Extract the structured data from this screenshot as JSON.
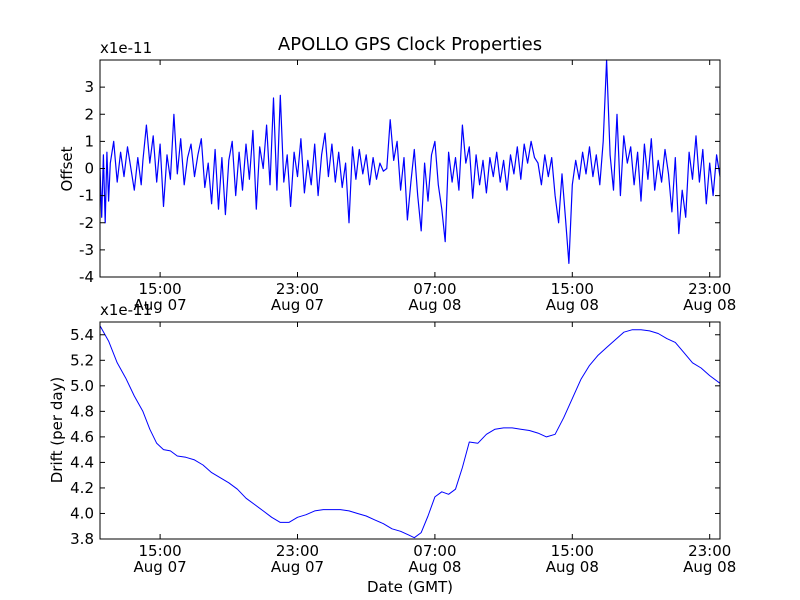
{
  "figure": {
    "title": "APOLLO GPS Clock Properties"
  },
  "chart_data": [
    {
      "type": "line",
      "title": "APOLLO GPS Clock Properties",
      "ylabel": "Offset",
      "xlabel": "",
      "offset_label": "x1e-11",
      "x_unit": "hours (GMT) relative to Aug 07 00:00",
      "xlim": [
        11.5,
        47.6
      ],
      "ylim": [
        -4,
        4
      ],
      "yticks": [
        -4,
        -3,
        -2,
        -1,
        0,
        1,
        2,
        3
      ],
      "ytick_labels": [
        "-4",
        "-3",
        "-2",
        "-1",
        "0",
        "1",
        "2",
        "3"
      ],
      "xticks": [
        {
          "x": 15,
          "time": "15:00",
          "date": "Aug 07"
        },
        {
          "x": 23,
          "time": "23:00",
          "date": "Aug 07"
        },
        {
          "x": 31,
          "time": "07:00",
          "date": "Aug 08"
        },
        {
          "x": 39,
          "time": "15:00",
          "date": "Aug 08"
        },
        {
          "x": 47,
          "time": "23:00",
          "date": "Aug 08"
        }
      ],
      "line_color": "#0000ff",
      "grid": false,
      "series": [
        {
          "name": "",
          "x": [
            11.5,
            11.6,
            11.7,
            11.8,
            11.9,
            12.0,
            12.1,
            12.3,
            12.5,
            12.7,
            12.9,
            13.1,
            13.3,
            13.5,
            13.7,
            13.9,
            14.0,
            14.2,
            14.4,
            14.6,
            14.8,
            15.0,
            15.2,
            15.4,
            15.6,
            15.8,
            16.0,
            16.2,
            16.4,
            16.6,
            16.8,
            17.0,
            17.2,
            17.4,
            17.6,
            17.8,
            18.0,
            18.2,
            18.4,
            18.6,
            18.8,
            19.0,
            19.2,
            19.4,
            19.6,
            19.8,
            20.0,
            20.2,
            20.4,
            20.6,
            20.8,
            21.0,
            21.2,
            21.4,
            21.6,
            21.8,
            22.0,
            22.2,
            22.4,
            22.6,
            22.8,
            23.0,
            23.2,
            23.4,
            23.6,
            23.8,
            24.0,
            24.2,
            24.4,
            24.6,
            24.8,
            25.0,
            25.2,
            25.4,
            25.6,
            25.8,
            26.0,
            26.2,
            26.4,
            26.6,
            26.8,
            27.0,
            27.2,
            27.4,
            27.6,
            27.8,
            28.0,
            28.2,
            28.4,
            28.6,
            28.8,
            29.0,
            29.2,
            29.4,
            29.6,
            29.8,
            30.0,
            30.2,
            30.4,
            30.6,
            30.8,
            31.0,
            31.2,
            31.4,
            31.6,
            31.8,
            32.0,
            32.2,
            32.4,
            32.6,
            32.8,
            33.0,
            33.2,
            33.4,
            33.6,
            33.8,
            34.0,
            34.2,
            34.4,
            34.6,
            34.8,
            35.0,
            35.2,
            35.4,
            35.6,
            35.8,
            36.0,
            36.2,
            36.4,
            36.6,
            36.8,
            37.0,
            37.2,
            37.4,
            37.6,
            37.8,
            38.0,
            38.2,
            38.4,
            38.6,
            38.8,
            39.0,
            39.2,
            39.4,
            39.6,
            39.8,
            40.0,
            40.2,
            40.4,
            40.6,
            40.8,
            41.0,
            41.2,
            41.4,
            41.6,
            41.8,
            42.0,
            42.2,
            42.4,
            42.6,
            42.8,
            43.0,
            43.2,
            43.4,
            43.6,
            43.8,
            44.0,
            44.2,
            44.4,
            44.6,
            44.8,
            45.0,
            45.2,
            45.4,
            45.6,
            45.8,
            46.0,
            46.2,
            46.4,
            46.6,
            46.8,
            47.0,
            47.2,
            47.4,
            47.6
          ],
          "y": [
            0.0,
            -1.8,
            0.5,
            -2.0,
            0.6,
            -1.2,
            0.2,
            1.0,
            -0.5,
            0.6,
            -0.3,
            0.8,
            0.0,
            -0.8,
            0.4,
            -0.6,
            0.3,
            1.6,
            0.2,
            1.2,
            -0.5,
            0.9,
            -1.4,
            0.5,
            -0.4,
            2.0,
            -0.2,
            1.1,
            -0.6,
            0.4,
            0.9,
            -0.3,
            0.5,
            1.1,
            -0.7,
            0.2,
            -1.3,
            0.7,
            -1.5,
            0.4,
            -1.7,
            0.3,
            1.0,
            -1.0,
            0.6,
            -0.8,
            0.9,
            -0.4,
            1.4,
            -1.5,
            0.8,
            0.0,
            1.6,
            -0.6,
            2.6,
            -0.8,
            2.7,
            -0.5,
            0.5,
            -1.4,
            0.6,
            -0.3,
            1.1,
            -0.9,
            0.3,
            -0.6,
            0.9,
            -1.0,
            0.5,
            1.3,
            -0.3,
            0.9,
            -0.5,
            0.6,
            -0.7,
            0.2,
            -2.0,
            0.8,
            -0.4,
            0.7,
            -0.2,
            0.5,
            -0.6,
            0.4,
            -0.4,
            0.2,
            -0.1,
            0.0,
            1.8,
            0.3,
            1.0,
            -0.8,
            0.4,
            -1.9,
            -0.5,
            0.7,
            -1.0,
            -2.3,
            0.2,
            -1.2,
            0.5,
            1.0,
            -0.6,
            -1.5,
            -2.7,
            0.6,
            -0.5,
            0.4,
            -0.8,
            1.6,
            0.2,
            0.8,
            -1.1,
            0.5,
            -0.6,
            0.3,
            -0.9,
            0.4,
            -0.3,
            0.6,
            -0.5,
            0.3,
            -0.8,
            0.5,
            -0.2,
            0.8,
            -0.4,
            0.9,
            0.2,
            1.0,
            0.4,
            0.2,
            -0.6,
            0.5,
            -0.3,
            0.4,
            -1.0,
            -2.0,
            -0.2,
            -1.8,
            -3.5,
            -0.6,
            0.3,
            -0.4,
            0.6,
            -0.2,
            0.8,
            -0.3,
            0.5,
            -0.6,
            1.0,
            4.0,
            0.5,
            -0.8,
            2.0,
            -1.0,
            1.2,
            0.2,
            0.8,
            -0.6,
            0.6,
            -1.2,
            0.9,
            -0.4,
            1.1,
            -0.8,
            0.3,
            -0.5,
            0.7,
            -0.2,
            -1.6,
            0.4,
            -2.4,
            -0.8,
            -1.8,
            0.6,
            -0.4,
            1.2,
            -0.5,
            0.7,
            -1.3,
            0.2,
            -1.0,
            0.5,
            -0.3
          ]
        }
      ]
    },
    {
      "type": "line",
      "title": "",
      "ylabel": "Drift (per day)",
      "xlabel": "Date (GMT)",
      "offset_label": "x1e-11",
      "x_unit": "hours (GMT) relative to Aug 07 00:00",
      "xlim": [
        11.5,
        47.6
      ],
      "ylim": [
        3.8,
        5.5
      ],
      "yticks": [
        3.8,
        4.0,
        4.2,
        4.4,
        4.6,
        4.8,
        5.0,
        5.2,
        5.4
      ],
      "ytick_labels": [
        "3.8",
        "4.0",
        "4.2",
        "4.4",
        "4.6",
        "4.8",
        "5.0",
        "5.2",
        "5.4"
      ],
      "xticks": [
        {
          "x": 15,
          "time": "15:00",
          "date": "Aug 07"
        },
        {
          "x": 23,
          "time": "23:00",
          "date": "Aug 07"
        },
        {
          "x": 31,
          "time": "07:00",
          "date": "Aug 08"
        },
        {
          "x": 39,
          "time": "15:00",
          "date": "Aug 08"
        },
        {
          "x": 47,
          "time": "23:00",
          "date": "Aug 08"
        }
      ],
      "line_color": "#0000ff",
      "grid": false,
      "series": [
        {
          "name": "",
          "x": [
            11.5,
            12.0,
            12.5,
            13.0,
            13.5,
            14.0,
            14.4,
            14.8,
            15.2,
            15.6,
            16.0,
            16.5,
            17.0,
            17.5,
            18.0,
            18.5,
            19.0,
            19.5,
            20.0,
            20.5,
            21.0,
            21.5,
            22.0,
            22.5,
            23.0,
            23.5,
            24.0,
            24.5,
            25.0,
            25.5,
            26.0,
            26.5,
            27.0,
            27.5,
            28.0,
            28.5,
            29.0,
            29.5,
            29.8,
            30.2,
            30.6,
            31.0,
            31.4,
            31.8,
            32.2,
            32.6,
            33.0,
            33.5,
            34.0,
            34.5,
            35.0,
            35.5,
            36.0,
            36.5,
            37.0,
            37.5,
            38.0,
            38.5,
            39.0,
            39.5,
            40.0,
            40.5,
            41.0,
            41.5,
            42.0,
            42.5,
            43.0,
            43.5,
            44.0,
            44.5,
            45.0,
            45.5,
            46.0,
            46.5,
            47.0,
            47.6
          ],
          "y": [
            5.47,
            5.35,
            5.18,
            5.06,
            4.92,
            4.8,
            4.66,
            4.55,
            4.5,
            4.49,
            4.45,
            4.44,
            4.42,
            4.38,
            4.32,
            4.28,
            4.24,
            4.19,
            4.12,
            4.07,
            4.02,
            3.97,
            3.93,
            3.93,
            3.97,
            3.99,
            4.02,
            4.03,
            4.03,
            4.03,
            4.02,
            4.0,
            3.98,
            3.95,
            3.92,
            3.88,
            3.86,
            3.83,
            3.81,
            3.85,
            3.98,
            4.13,
            4.17,
            4.15,
            4.19,
            4.36,
            4.56,
            4.55,
            4.62,
            4.66,
            4.67,
            4.67,
            4.66,
            4.65,
            4.63,
            4.6,
            4.62,
            4.75,
            4.9,
            5.05,
            5.16,
            5.24,
            5.3,
            5.36,
            5.42,
            5.44,
            5.44,
            5.43,
            5.41,
            5.37,
            5.34,
            5.26,
            5.18,
            5.14,
            5.08,
            5.02
          ]
        }
      ]
    }
  ]
}
